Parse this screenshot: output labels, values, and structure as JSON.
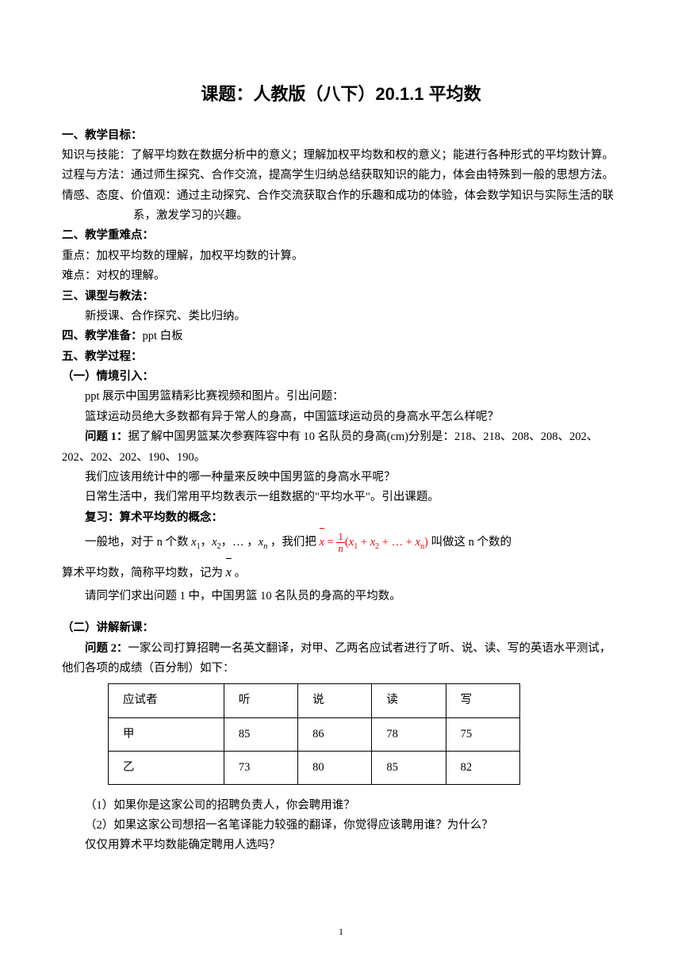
{
  "title": "课题：人教版（八下）20.1.1 平均数",
  "sections": {
    "s1_heading": "一、教学目标：",
    "s1_knowledge": "知识与技能：了解平均数在数据分析中的意义；理解加权平均数和权的意义；能进行各种形式的平均数计算。",
    "s1_process": "过程与方法：通过师生探究、合作交流，提高学生归纳总结获取知识的能力，体会由特殊到一般的思想方法。",
    "s1_attitude": "情感、态度、价值观：通过主动探究、合作交流获取合作的乐趣和成功的体验，体会数学知识与实际生活的联系，激发学习的兴趣。",
    "s2_heading": "二、教学重难点：",
    "s2_key": "重点：加权平均数的理解，加权平均数的计算。",
    "s2_difficulty": "难点：对权的理解。",
    "s3_heading": "三、课型与教法：",
    "s3_content": "新授课、合作探究、类比归纳。",
    "s4_heading": "四、教学准备：",
    "s4_content": "ppt 白板",
    "s5_heading": "五、教学过程：",
    "s5_1_heading": "（一）情境引入：",
    "s5_1_p1": "ppt 展示中国男篮精彩比赛视频和图片。引出问题：",
    "s5_1_p2": "篮球运动员绝大多数都有异于常人的身高，中国篮球运动员的身高水平怎么样呢？",
    "s5_1_q1": "问题 1：",
    "s5_1_q1_text": "据了解中国男篮某次参赛阵容中有 10 名队员的身高(cm)分别是：218、218、208、208、202、202、202、202、190、190。",
    "s5_1_p3": "我们应该用统计中的哪一种量来反映中国男篮的身高水平呢？",
    "s5_1_p4": "日常生活中，我们常用平均数表示一组数据的\"平均水平\"。引出课题。",
    "s5_1_review": "复习：算术平均数的概念：",
    "s5_1_formula_intro": "一般地，对于 n 个数",
    "s5_1_formula_mid": "，我们把",
    "s5_1_formula_end": "叫做这 n 个数的",
    "s5_1_p5": "算术平均数，简称平均数，记为",
    "s5_1_p5_end": "。",
    "s5_1_p6": "请同学们求出问题 1 中，中国男篮 10 名队员的身高的平均数。",
    "s5_2_heading": "（二）讲解新课：",
    "s5_2_q2": "问题 2：",
    "s5_2_q2_text": "一家公司打算招聘一名英文翻译，对甲、乙两名应试者进行了听、说、读、写的英语水平测试，他们各项的成绩（百分制）如下：",
    "s5_2_after1": "（1）如果你是这家公司的招聘负责人，你会聘用谁？",
    "s5_2_after2": "（2）如果这家公司想招一名笔译能力较强的翻译，你觉得应该聘用谁？为什么？",
    "s5_2_after3": "仅仅用算术平均数能确定聘用人选吗？"
  },
  "table": {
    "columns": [
      "应试者",
      "听",
      "说",
      "读",
      "写"
    ],
    "rows": [
      [
        "甲",
        "85",
        "86",
        "78",
        "75"
      ],
      [
        "乙",
        "73",
        "80",
        "85",
        "82"
      ]
    ]
  },
  "footer": {
    "page": "1"
  }
}
